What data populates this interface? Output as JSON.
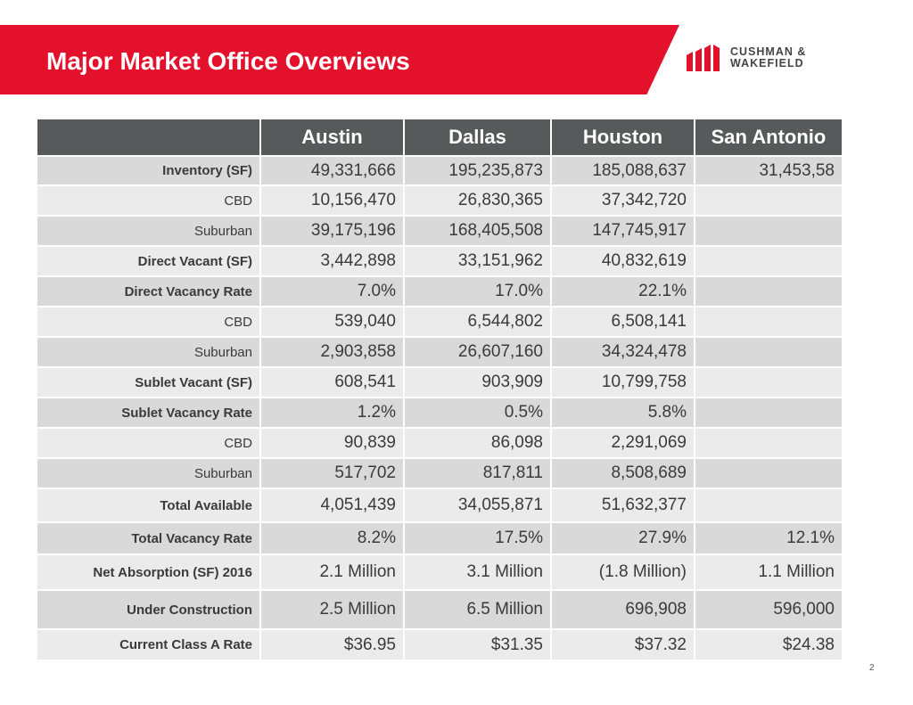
{
  "header": {
    "title": "Major Market Office Overviews",
    "brand_color": "#e3112c",
    "logo_line1": "CUSHMAN &",
    "logo_line2": "WAKEFIELD"
  },
  "table": {
    "columns": [
      "Austin",
      "Dallas",
      "Houston",
      "San Antonio"
    ],
    "rows": [
      {
        "label": "Inventory (SF)",
        "bold": true,
        "values": [
          "49,331,666",
          "195,235,873",
          "185,088,637",
          "31,453,58"
        ]
      },
      {
        "label": "CBD",
        "bold": false,
        "values": [
          "10,156,470",
          "26,830,365",
          "37,342,720",
          ""
        ]
      },
      {
        "label": "Suburban",
        "bold": false,
        "values": [
          "39,175,196",
          "168,405,508",
          "147,745,917",
          ""
        ]
      },
      {
        "label": "Direct Vacant (SF)",
        "bold": true,
        "values": [
          "3,442,898",
          "33,151,962",
          "40,832,619",
          ""
        ]
      },
      {
        "label": "Direct Vacancy Rate",
        "bold": true,
        "values": [
          "7.0%",
          "17.0%",
          "22.1%",
          ""
        ]
      },
      {
        "label": "CBD",
        "bold": false,
        "values": [
          "539,040",
          "6,544,802",
          "6,508,141",
          ""
        ]
      },
      {
        "label": "Suburban",
        "bold": false,
        "values": [
          "2,903,858",
          "26,607,160",
          "34,324,478",
          ""
        ]
      },
      {
        "label": "Sublet Vacant (SF)",
        "bold": true,
        "values": [
          "608,541",
          "903,909",
          "10,799,758",
          ""
        ]
      },
      {
        "label": "Sublet Vacancy Rate",
        "bold": true,
        "values": [
          "1.2%",
          "0.5%",
          "5.8%",
          ""
        ]
      },
      {
        "label": "CBD",
        "bold": false,
        "values": [
          "90,839",
          "86,098",
          "2,291,069",
          ""
        ]
      },
      {
        "label": "Suburban",
        "bold": false,
        "values": [
          "517,702",
          "817,811",
          "8,508,689",
          ""
        ]
      },
      {
        "label": "Total Available",
        "bold": true,
        "values": [
          "4,051,439",
          "34,055,871",
          "51,632,377",
          ""
        ]
      },
      {
        "label": "Total Vacancy Rate",
        "bold": true,
        "values": [
          "8.2%",
          "17.5%",
          "27.9%",
          "12.1%"
        ]
      },
      {
        "label": "Net Absorption (SF) 2016",
        "bold": true,
        "values": [
          "2.1 Million",
          "3.1 Million",
          "(1.8 Million)",
          "1.1 Million"
        ]
      },
      {
        "label": "Under Construction",
        "bold": true,
        "values": [
          "2.5 Million",
          "6.5 Million",
          "696,908",
          "596,000"
        ]
      },
      {
        "label": "Current Class A Rate",
        "bold": true,
        "values": [
          "$36.95",
          "$31.35",
          "$37.32",
          "$24.38"
        ]
      }
    ]
  },
  "footer": {
    "page_number": "2"
  }
}
